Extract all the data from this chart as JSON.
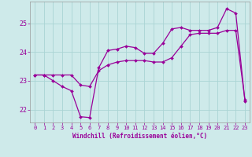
{
  "xlabel": "Windchill (Refroidissement éolien,°C)",
  "background_color": "#ceeaea",
  "line_color": "#990099",
  "grid_color": "#aad4d4",
  "xlim": [
    -0.5,
    23.5
  ],
  "ylim": [
    21.55,
    25.75
  ],
  "yticks": [
    22,
    23,
    24,
    25
  ],
  "xticks": [
    0,
    1,
    2,
    3,
    4,
    5,
    6,
    7,
    8,
    9,
    10,
    11,
    12,
    13,
    14,
    15,
    16,
    17,
    18,
    19,
    20,
    21,
    22,
    23
  ],
  "line1_x": [
    0,
    1,
    2,
    3,
    4,
    5,
    6,
    7,
    8,
    9,
    10,
    11,
    12,
    13,
    14,
    15,
    16,
    17,
    18,
    19,
    20,
    21,
    22,
    23
  ],
  "line1_y": [
    23.2,
    23.2,
    23.0,
    22.8,
    22.65,
    21.75,
    21.72,
    23.45,
    24.05,
    24.1,
    24.2,
    24.15,
    23.95,
    23.95,
    24.3,
    24.8,
    24.85,
    24.75,
    24.75,
    24.75,
    24.85,
    25.5,
    25.35,
    22.3
  ],
  "line2_x": [
    0,
    1,
    2,
    3,
    4,
    5,
    6,
    7,
    8,
    9,
    10,
    11,
    12,
    13,
    14,
    15,
    16,
    17,
    18,
    19,
    20,
    21,
    22,
    23
  ],
  "line2_y": [
    23.2,
    23.2,
    23.2,
    23.2,
    23.2,
    22.85,
    22.8,
    23.35,
    23.55,
    23.65,
    23.7,
    23.7,
    23.7,
    23.65,
    23.65,
    23.8,
    24.2,
    24.6,
    24.65,
    24.65,
    24.65,
    24.75,
    24.75,
    22.35
  ]
}
